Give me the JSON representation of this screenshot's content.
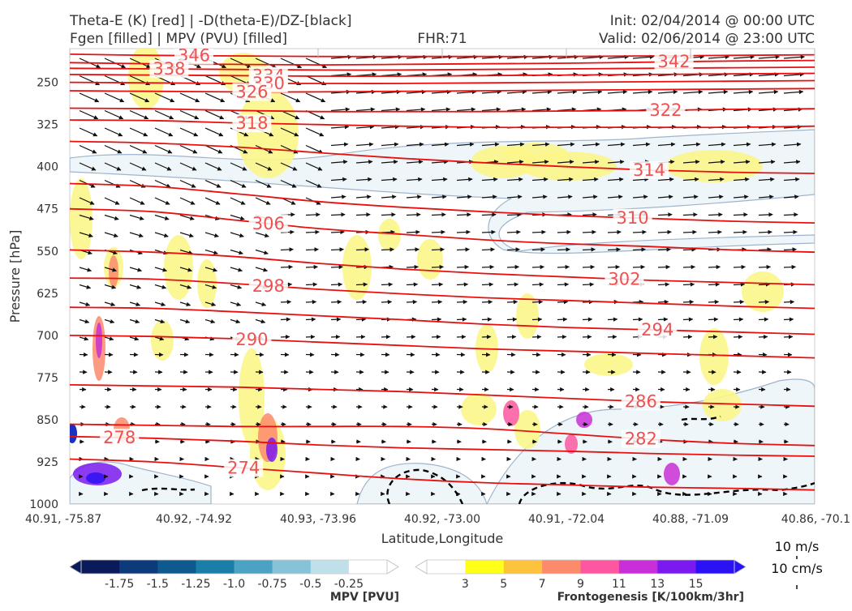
{
  "header": {
    "line1_left": "Theta-E (K) [red] | -D(theta-E)/DZ-[black]",
    "line2_left": "Fgen [filled] | MPV (PVU) [filled]",
    "center": "FHR:71",
    "line1_right": "Init: 02/04/2014 @ 00:00 UTC",
    "line2_right": "Valid: 02/06/2014 @ 23:00 UTC"
  },
  "chart_data": {
    "type": "cross-section",
    "xlabel": "Latitude,Longitude",
    "ylabel": "Pressure [hPa]",
    "x_ticks": [
      "40.91, -75.87",
      "40.92, -74.92",
      "40.93, -73.96",
      "40.92, -73.00",
      "40.91, -72.04",
      "40.88, -71.09",
      "40.86, -70.1"
    ],
    "y_ticks": [
      250,
      325,
      400,
      475,
      550,
      625,
      700,
      775,
      850,
      925,
      1000
    ],
    "ylim": [
      1000,
      190
    ],
    "theta_e_contours": [
      {
        "label": "346",
        "levels": [
          200,
          202,
          203,
          204,
          204,
          204,
          204,
          203,
          202,
          201
        ]
      },
      {
        "label": "342",
        "levels": [
          215,
          217,
          218,
          219,
          218,
          217,
          216,
          214,
          212,
          211
        ]
      },
      {
        "label": "338",
        "levels": [
          225,
          226,
          227,
          228,
          228,
          227,
          226,
          225,
          224,
          223
        ]
      },
      {
        "label": "334",
        "levels": [
          236,
          237,
          238,
          239,
          239,
          238,
          237,
          236,
          235,
          234
        ]
      },
      {
        "label": "330",
        "levels": [
          250,
          251,
          252,
          252,
          252,
          251,
          250,
          249,
          248,
          247
        ]
      },
      {
        "label": "326",
        "levels": [
          265,
          266,
          267,
          267,
          266,
          265,
          264,
          263,
          262,
          261
        ]
      },
      {
        "label": "322",
        "levels": [
          296,
          297,
          300,
          302,
          302,
          302,
          301,
          300,
          298,
          297
        ]
      },
      {
        "label": "318",
        "levels": [
          317,
          318,
          322,
          325,
          328,
          330,
          330,
          330,
          330,
          328
        ]
      },
      {
        "label": "314",
        "levels": [
          355,
          358,
          365,
          375,
          385,
          393,
          400,
          406,
          410,
          412
        ]
      },
      {
        "label": "310",
        "levels": [
          430,
          435,
          448,
          462,
          472,
          480,
          487,
          492,
          497,
          500
        ]
      },
      {
        "label": "306",
        "levels": [
          475,
          480,
          495,
          510,
          520,
          530,
          537,
          542,
          548,
          552
        ]
      },
      {
        "label": "302",
        "levels": [
          548,
          552,
          560,
          572,
          582,
          590,
          596,
          602,
          606,
          610
        ]
      },
      {
        "label": "298",
        "levels": [
          598,
          600,
          608,
          618,
          626,
          633,
          638,
          643,
          648,
          652
        ]
      },
      {
        "label": "294",
        "levels": [
          650,
          652,
          658,
          665,
          672,
          680,
          686,
          690,
          694,
          698
        ]
      },
      {
        "label": "290",
        "levels": [
          700,
          702,
          706,
          712,
          718,
          724,
          728,
          732,
          736,
          740
        ]
      },
      {
        "label": "286",
        "levels": [
          788,
          790,
          792,
          796,
          800,
          806,
          812,
          818,
          822,
          826
        ]
      },
      {
        "label": "282",
        "levels": [
          858,
          860,
          862,
          862,
          862,
          866,
          875,
          885,
          892,
          896
        ]
      },
      {
        "label": "278",
        "levels": [
          880,
          883,
          888,
          895,
          900,
          903,
          906,
          910,
          913,
          915
        ]
      },
      {
        "label": "274",
        "levels": [
          920,
          925,
          935,
          945,
          955,
          962,
          966,
          970,
          972,
          975
        ]
      }
    ],
    "contour_labels": [
      {
        "text": "346",
        "i": 1.5
      },
      {
        "text": "342",
        "i": 7.3
      },
      {
        "text": "338",
        "i": 1.2
      },
      {
        "text": "334",
        "i": 2.4
      },
      {
        "text": "330",
        "i": 2.4
      },
      {
        "text": "326",
        "i": 2.2
      },
      {
        "text": "322",
        "i": 7.2
      },
      {
        "text": "318",
        "i": 2.2
      },
      {
        "text": "314",
        "i": 7.0
      },
      {
        "text": "310",
        "i": 6.8
      },
      {
        "text": "306",
        "i": 2.4
      },
      {
        "text": "302",
        "i": 6.7
      },
      {
        "text": "298",
        "i": 2.4
      },
      {
        "text": "294",
        "i": 7.1
      },
      {
        "text": "290",
        "i": 2.2
      },
      {
        "text": "286",
        "i": 6.9
      },
      {
        "text": "282",
        "i": 6.9
      },
      {
        "text": "278",
        "i": 0.6
      },
      {
        "text": "274",
        "i": 2.1
      }
    ],
    "mpv_colorbar": {
      "label": "MPV [PVU]",
      "ticks": [
        "-1.75",
        "-1.5",
        "-1.25",
        "-1.0",
        "-0.75",
        "-0.5",
        "-0.25"
      ],
      "colors": [
        "#0b1a5a",
        "#0d3a7a",
        "#0e5a8e",
        "#1a7fa6",
        "#4aa3c3",
        "#86c3d8",
        "#bfe0ea",
        "#ffffff"
      ]
    },
    "fgen_colorbar": {
      "label": "Frontogenesis [K/100km/3hr]",
      "ticks": [
        "3",
        "5",
        "7",
        "9",
        "11",
        "13",
        "15"
      ],
      "colors": [
        "#ffffff",
        "#ffff1a",
        "#fdc23e",
        "#fc8a6c",
        "#fc57a0",
        "#c92fd6",
        "#7b1aee",
        "#2b12f5"
      ]
    },
    "vector_key": {
      "u_label": "10 m/s",
      "w_label": "10 cm/s"
    }
  }
}
